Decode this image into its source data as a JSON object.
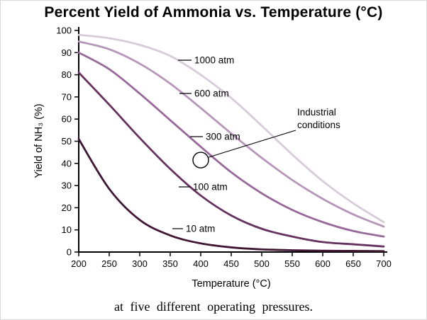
{
  "title": "Percent Yield of Ammonia vs. Temperature (°C)",
  "caption": "at five different operating pressures.",
  "chart_data": {
    "type": "line",
    "title": "Percent Yield of Ammonia vs. Temperature (°C)",
    "xlabel": "Temperature (°C)",
    "ylabel": "Yield of NH₃ (%)",
    "xlim": [
      200,
      700
    ],
    "ylim": [
      0,
      100
    ],
    "x_ticks": [
      200,
      250,
      300,
      350,
      400,
      450,
      500,
      550,
      600,
      650,
      700
    ],
    "y_ticks": [
      0,
      10,
      20,
      30,
      40,
      50,
      60,
      70,
      80,
      90,
      100
    ],
    "grid": false,
    "legend_position": "inline-curve-labels",
    "x": [
      200,
      250,
      300,
      350,
      400,
      450,
      500,
      550,
      600,
      650,
      700
    ],
    "series": [
      {
        "name": "1000 atm",
        "color": "#d7cbd9",
        "values": [
          98,
          96.5,
          93.5,
          88.5,
          80,
          69.5,
          57,
          44,
          32,
          22,
          13.5
        ]
      },
      {
        "name": "600 atm",
        "color": "#b596b8",
        "values": [
          95,
          91.5,
          85,
          76,
          65,
          53.5,
          42.5,
          32.5,
          24,
          17,
          11.5
        ]
      },
      {
        "name": "300 atm",
        "color": "#97689a",
        "values": [
          90,
          82.5,
          71.5,
          59.5,
          47.5,
          36,
          26.5,
          19,
          13.5,
          9.5,
          7
        ]
      },
      {
        "name": "100 atm",
        "color": "#65315e",
        "values": [
          81,
          66.5,
          51.5,
          37.5,
          25.5,
          16.5,
          10.5,
          7,
          4.5,
          3.5,
          2.5
        ]
      },
      {
        "name": "10 atm",
        "color": "#401634",
        "values": [
          51,
          28.5,
          14.5,
          7.5,
          3.9,
          2.1,
          1.2,
          0.8,
          0.6,
          0.5,
          0.4
        ]
      }
    ],
    "annotation": {
      "label": "Industrial conditions",
      "x_value": 400,
      "y_value": 41.5
    }
  }
}
